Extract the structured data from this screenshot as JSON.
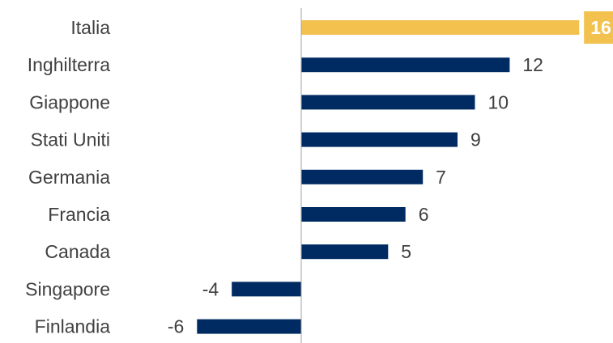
{
  "chart_data": {
    "type": "bar",
    "orientation": "horizontal",
    "categories": [
      "Italia",
      "Inghilterra",
      "Giappone",
      "Stati Uniti",
      "Germania",
      "Francia",
      "Canada",
      "Singapore",
      "Finlandia"
    ],
    "values": [
      16,
      12,
      10,
      9,
      7,
      6,
      5,
      -4,
      -6
    ],
    "value_labels": [
      "16",
      "12",
      "10",
      "9",
      "7",
      "6",
      "5",
      "-4",
      "-6"
    ],
    "highlight_index": 0,
    "colors": {
      "default": "#002b62",
      "highlight": "#f2c14e",
      "axis": "#a6a6a6",
      "text": "#404040"
    },
    "xlim": [
      -6,
      16
    ],
    "grid": false,
    "legend": "none"
  }
}
